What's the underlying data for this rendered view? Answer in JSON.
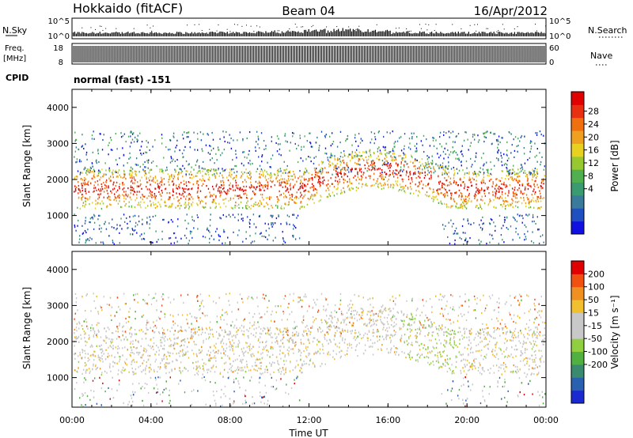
{
  "header": {
    "site": "Hokkaido (fitACF)",
    "beam": "Beam 04",
    "date": "16/Apr/2012"
  },
  "summary": {
    "nsky_label": "N.Sky",
    "nsky_ticks": [
      "10^5",
      "10^0"
    ],
    "nsearch_label": "N.Search",
    "nsearch_ticks": [
      "10^5",
      "10^0"
    ],
    "freq_label": "Freq.",
    "freq_unit": "[MHz]",
    "freq_ticks": [
      "18",
      "8"
    ],
    "nave_label": "Nave",
    "nave_ticks": [
      "60",
      "0"
    ],
    "cpid_label": "CPID",
    "cpid_value": "normal (fast) -151"
  },
  "chart_data": [
    {
      "type": "heatmap",
      "name": "power",
      "ylabel": "Slant Range [km]",
      "yticks": [
        "4000",
        "3000",
        "2000",
        "1000"
      ],
      "ylim": [
        180,
        4500
      ],
      "colorbar_label": "Power [dB]",
      "colorbar_ticks": [
        "28",
        "24",
        "20",
        "16",
        "12",
        "8",
        "4"
      ],
      "colorbar_colors": [
        "#1010e0",
        "#2050c0",
        "#3a7a9a",
        "#3a9a70",
        "#50b050",
        "#98c830",
        "#e8d020",
        "#f0a020",
        "#f07010",
        "#e83010",
        "#e00000"
      ]
    },
    {
      "type": "heatmap",
      "name": "velocity",
      "ylabel": "Slant Range [km]",
      "yticks": [
        "4000",
        "3000",
        "2000",
        "1000"
      ],
      "ylim": [
        180,
        4500
      ],
      "colorbar_label": "Velocity [m s⁻¹]",
      "colorbar_ticks": [
        "200",
        "100",
        "50",
        "15",
        "-15",
        "-50",
        "-100",
        "-200"
      ],
      "colorbar_colors": [
        "#1a2ad0",
        "#2a60b0",
        "#3a8a70",
        "#50b040",
        "#90d040",
        "#c8c8c8",
        "#c8c8c8",
        "#f0c030",
        "#f09020",
        "#f05010",
        "#e00000"
      ]
    }
  ],
  "xaxis": {
    "ticks": [
      "00:00",
      "04:00",
      "08:00",
      "12:00",
      "16:00",
      "20:00",
      "00:00"
    ],
    "label": "Time UT"
  }
}
